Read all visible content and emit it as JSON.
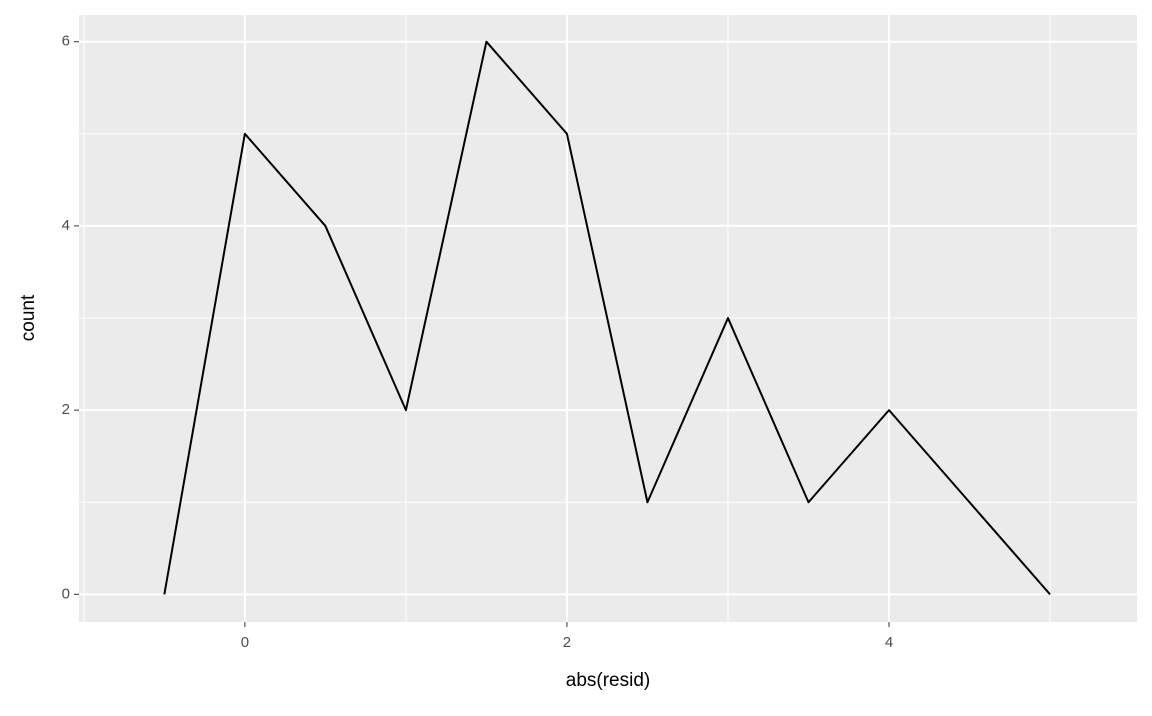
{
  "chart_data": {
    "type": "line",
    "x_label": "abs(resid)",
    "y_label": "count",
    "x": [
      -0.5,
      0,
      0.5,
      1,
      1.5,
      2,
      2.5,
      3,
      3.5,
      4,
      4.5,
      5
    ],
    "series": [
      {
        "color": "#000000",
        "values": [
          0,
          5,
          4,
          2,
          6,
          5,
          1,
          3,
          1,
          2,
          1,
          0
        ]
      }
    ],
    "xlim": [
      -1.03,
      5.54
    ],
    "ylim": [
      -0.3,
      6.29
    ],
    "xticks": [
      0,
      2,
      4
    ],
    "yticks": [
      0,
      2,
      4,
      6
    ],
    "grid": true,
    "minor_grid": true,
    "panel_color": "#ebebeb"
  }
}
